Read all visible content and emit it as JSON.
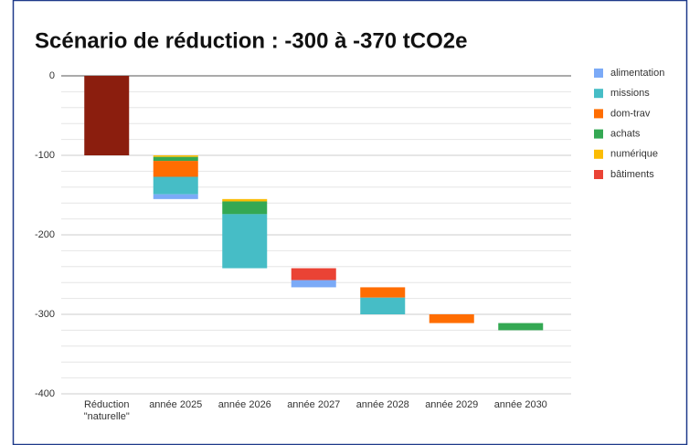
{
  "chart_data": {
    "type": "waterfall",
    "title": "Scénario de réduction : -300 à -370 tCO2e",
    "categories": [
      "Réduction \"naturelle\"",
      "année 2025",
      "année 2026",
      "année 2027",
      "année 2028",
      "année 2029",
      "année 2030"
    ],
    "initial": {
      "values": [
        -100,
        null,
        null,
        null,
        null,
        null,
        null
      ],
      "color": "#8b1e0e"
    },
    "series": [
      {
        "name": "alimentation",
        "color": "#7baaf7",
        "values": [
          null,
          -6,
          null,
          -9,
          null,
          null,
          null
        ]
      },
      {
        "name": "missions",
        "color": "#46bdc6",
        "values": [
          null,
          -22,
          -68,
          null,
          -21,
          null,
          null
        ]
      },
      {
        "name": "dom-trav",
        "color": "#ff6d01",
        "values": [
          null,
          -20,
          null,
          null,
          -13,
          -11,
          null
        ]
      },
      {
        "name": "achats",
        "color": "#34a853",
        "values": [
          null,
          -5,
          -16,
          null,
          null,
          null,
          -9
        ]
      },
      {
        "name": "numérique",
        "color": "#fbbc04",
        "values": [
          null,
          -2,
          -3,
          null,
          null,
          null,
          null
        ]
      },
      {
        "name": "bâtiments",
        "color": "#ea4335",
        "values": [
          null,
          null,
          null,
          -15,
          null,
          null,
          null
        ]
      }
    ],
    "ylim": [
      -400,
      0
    ],
    "yticks": [
      0,
      -100,
      -200,
      -300,
      -400
    ],
    "minor_yticks": [
      -20,
      -40,
      -60,
      -80,
      -120,
      -140,
      -160,
      -180,
      -220,
      -240,
      -260,
      -280,
      -320,
      -340,
      -360,
      -380
    ],
    "grid": true,
    "legend": "right"
  }
}
